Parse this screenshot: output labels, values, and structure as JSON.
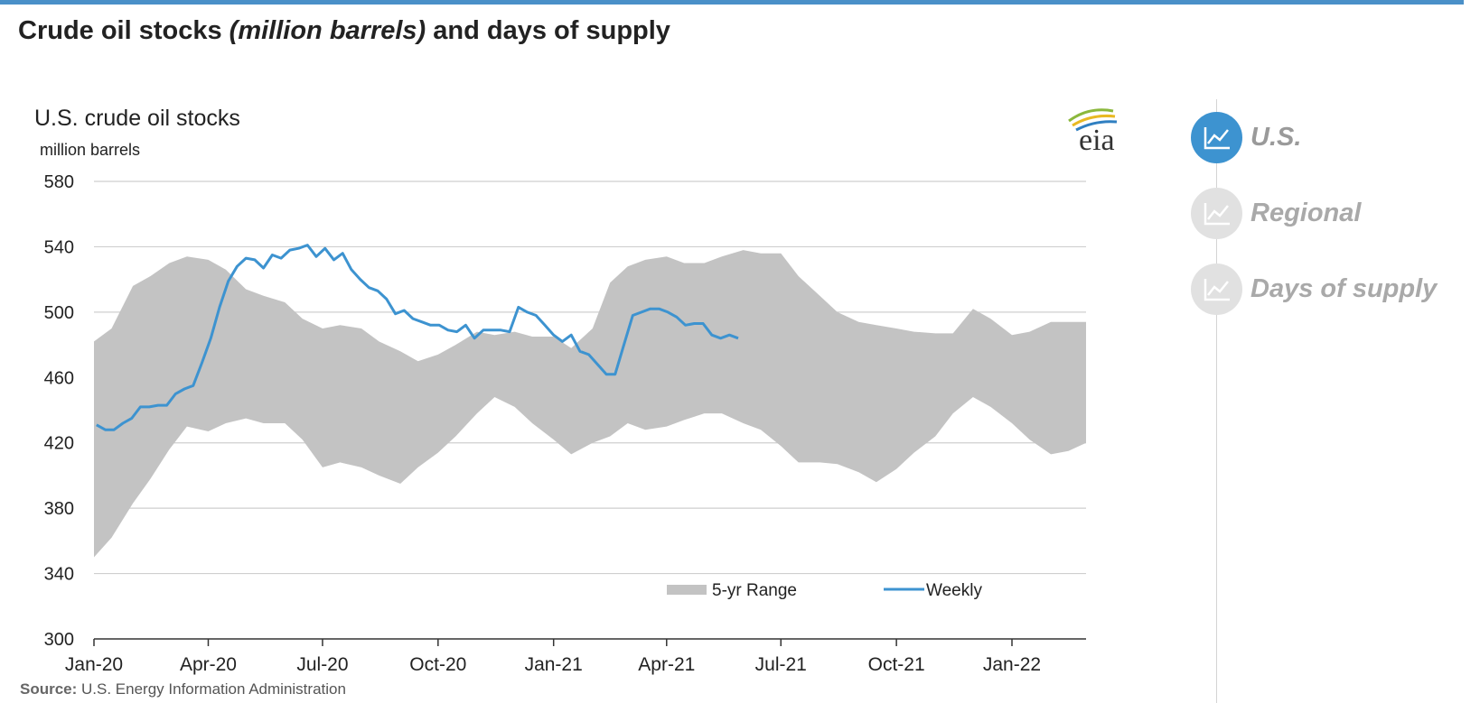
{
  "page": {
    "title_main": "Crude oil stocks ",
    "title_italic": "(million barrels)",
    "title_tail": " and days of supply",
    "source_label": "Source:",
    "source_text": " U.S. Energy Information Administration"
  },
  "nav": {
    "items": [
      {
        "label": "U.S.",
        "active": true,
        "icon": "line-chart-icon"
      },
      {
        "label": "Regional",
        "active": false,
        "icon": "line-chart-icon"
      },
      {
        "label": "Days of supply",
        "active": false,
        "icon": "line-chart-icon"
      }
    ]
  },
  "colors": {
    "accent": "#4a90c8",
    "range_fill": "#c3c3c3",
    "weekly_line": "#3d93d0",
    "nav_active": "#3d93d0",
    "nav_inactive": "#e1e1e1"
  },
  "chart_data": {
    "type": "area",
    "title": "U.S. crude oil stocks",
    "ylabel": "million barrels",
    "ylim": [
      300,
      580
    ],
    "yticks": [
      300,
      340,
      380,
      420,
      460,
      500,
      540,
      580
    ],
    "xlim": [
      "2020-01-01",
      "2022-03-01"
    ],
    "xticks": [
      {
        "date": "2020-01-01",
        "label": "Jan-20"
      },
      {
        "date": "2020-04-01",
        "label": "Apr-20"
      },
      {
        "date": "2020-07-01",
        "label": "Jul-20"
      },
      {
        "date": "2020-10-01",
        "label": "Oct-20"
      },
      {
        "date": "2021-01-01",
        "label": "Jan-21"
      },
      {
        "date": "2021-04-01",
        "label": "Apr-21"
      },
      {
        "date": "2021-07-01",
        "label": "Jul-21"
      },
      {
        "date": "2021-10-01",
        "label": "Oct-21"
      },
      {
        "date": "2022-01-01",
        "label": "Jan-22"
      }
    ],
    "grid": true,
    "legend_position": "bottom-right",
    "logo": "eia",
    "series": [
      {
        "name": "5-yr Range",
        "kind": "band",
        "x": [
          "2020-01-01",
          "2020-01-15",
          "2020-02-01",
          "2020-02-15",
          "2020-03-01",
          "2020-03-15",
          "2020-04-01",
          "2020-04-15",
          "2020-05-01",
          "2020-05-15",
          "2020-06-01",
          "2020-06-15",
          "2020-07-01",
          "2020-07-15",
          "2020-08-01",
          "2020-08-15",
          "2020-09-01",
          "2020-09-15",
          "2020-10-01",
          "2020-10-15",
          "2020-11-01",
          "2020-11-15",
          "2020-12-01",
          "2020-12-15",
          "2021-01-01",
          "2021-01-15",
          "2021-02-01",
          "2021-02-15",
          "2021-03-01",
          "2021-03-15",
          "2021-04-01",
          "2021-04-15",
          "2021-05-01",
          "2021-05-15",
          "2021-06-01",
          "2021-06-15",
          "2021-07-01",
          "2021-07-15",
          "2021-08-01",
          "2021-08-15",
          "2021-09-01",
          "2021-09-15",
          "2021-10-01",
          "2021-10-15",
          "2021-11-01",
          "2021-11-15",
          "2021-12-01",
          "2021-12-15",
          "2022-01-01",
          "2022-01-15",
          "2022-02-01",
          "2022-02-15",
          "2022-03-01"
        ],
        "low": [
          350,
          362,
          383,
          398,
          416,
          430,
          427,
          432,
          435,
          432,
          432,
          422,
          405,
          408,
          405,
          400,
          395,
          405,
          414,
          424,
          438,
          448,
          442,
          432,
          422,
          413,
          420,
          424,
          432,
          428,
          430,
          434,
          438,
          438,
          432,
          428,
          418,
          408,
          408,
          407,
          402,
          396,
          404,
          414,
          424,
          438,
          448,
          442,
          432,
          422,
          413,
          415,
          420
        ],
        "high": [
          482,
          490,
          516,
          522,
          530,
          534,
          532,
          526,
          514,
          510,
          506,
          496,
          490,
          492,
          490,
          482,
          476,
          470,
          474,
          480,
          488,
          486,
          488,
          485,
          485,
          478,
          490,
          518,
          528,
          532,
          534,
          530,
          530,
          534,
          538,
          536,
          536,
          522,
          510,
          500,
          494,
          492,
          490,
          488,
          487,
          487,
          502,
          496,
          486,
          488,
          494,
          494,
          494
        ]
      },
      {
        "name": "Weekly",
        "kind": "line",
        "x": [
          "2020-01-03",
          "2020-01-10",
          "2020-01-17",
          "2020-01-24",
          "2020-01-31",
          "2020-02-07",
          "2020-02-14",
          "2020-02-21",
          "2020-02-28",
          "2020-03-06",
          "2020-03-13",
          "2020-03-20",
          "2020-03-27",
          "2020-04-03",
          "2020-04-10",
          "2020-04-17",
          "2020-04-24",
          "2020-05-01",
          "2020-05-08",
          "2020-05-15",
          "2020-05-22",
          "2020-05-29",
          "2020-06-05",
          "2020-06-12",
          "2020-06-19",
          "2020-06-26",
          "2020-07-03",
          "2020-07-10",
          "2020-07-17",
          "2020-07-24",
          "2020-07-31",
          "2020-08-07",
          "2020-08-14",
          "2020-08-21",
          "2020-08-28",
          "2020-09-04",
          "2020-09-11",
          "2020-09-18",
          "2020-09-25",
          "2020-10-02",
          "2020-10-09",
          "2020-10-16",
          "2020-10-23",
          "2020-10-30",
          "2020-11-06",
          "2020-11-13",
          "2020-11-20",
          "2020-11-27",
          "2020-12-04",
          "2020-12-11",
          "2020-12-18",
          "2020-12-25",
          "2021-01-01",
          "2021-01-08",
          "2021-01-15",
          "2021-01-22",
          "2021-01-29",
          "2021-02-05",
          "2021-02-12",
          "2021-02-19",
          "2021-02-26",
          "2021-03-05",
          "2021-03-12",
          "2021-03-19",
          "2021-03-26",
          "2021-04-02",
          "2021-04-09",
          "2021-04-16",
          "2021-04-23",
          "2021-04-30",
          "2021-05-07",
          "2021-05-14",
          "2021-05-21",
          "2021-05-28"
        ],
        "y": [
          431,
          428,
          428,
          432,
          435,
          442,
          442,
          443,
          443,
          450,
          453,
          455,
          469,
          484,
          503,
          519,
          528,
          533,
          532,
          527,
          535,
          533,
          538,
          539,
          541,
          534,
          539,
          532,
          536,
          526,
          520,
          515,
          513,
          508,
          499,
          501,
          496,
          494,
          492,
          492,
          489,
          488,
          492,
          484,
          489,
          489,
          489,
          488,
          503,
          500,
          498,
          492,
          486,
          482,
          486,
          476,
          474,
          468,
          462,
          462,
          480,
          498,
          500,
          502,
          502,
          500,
          497,
          492,
          493,
          493,
          486,
          484,
          486,
          484
        ]
      }
    ]
  }
}
